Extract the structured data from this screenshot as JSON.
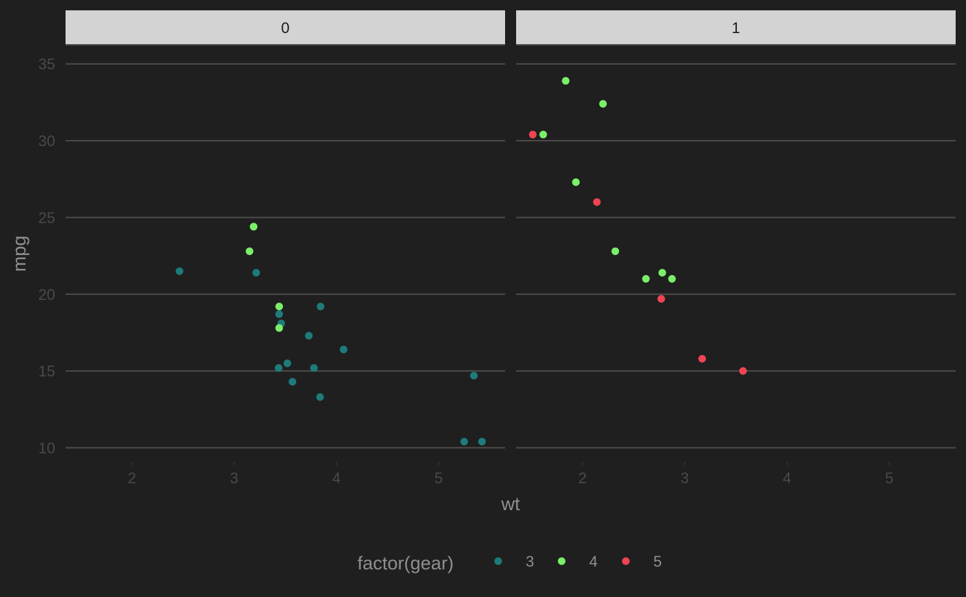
{
  "chart_data": {
    "type": "scatter",
    "facet_variable_values": [
      "0",
      "1"
    ],
    "xlabel": "wt",
    "ylabel": "mpg",
    "xlim": [
      1.35,
      5.65
    ],
    "ylim": [
      9.35,
      36.2
    ],
    "x_ticks": [
      2,
      3,
      4,
      5
    ],
    "y_ticks": [
      10,
      15,
      20,
      25,
      30,
      35
    ],
    "grid": "horizontal major only",
    "legend": {
      "title": "factor(gear)",
      "position": "bottom",
      "entries": [
        {
          "label": "3",
          "color": "#1e7b7b"
        },
        {
          "label": "4",
          "color": "#7bef6a"
        },
        {
          "label": "5",
          "color": "#ef4453"
        }
      ]
    },
    "panels": [
      {
        "strip": "0",
        "points": [
          {
            "x": 2.465,
            "y": 21.5,
            "gear": "3"
          },
          {
            "x": 3.215,
            "y": 21.4,
            "gear": "3"
          },
          {
            "x": 3.44,
            "y": 18.7,
            "gear": "3"
          },
          {
            "x": 3.46,
            "y": 18.1,
            "gear": "3"
          },
          {
            "x": 3.57,
            "y": 14.3,
            "gear": "3"
          },
          {
            "x": 4.07,
            "y": 16.4,
            "gear": "3"
          },
          {
            "x": 3.73,
            "y": 17.3,
            "gear": "3"
          },
          {
            "x": 3.78,
            "y": 15.2,
            "gear": "3"
          },
          {
            "x": 5.25,
            "y": 10.4,
            "gear": "3"
          },
          {
            "x": 5.424,
            "y": 10.4,
            "gear": "3"
          },
          {
            "x": 5.345,
            "y": 14.7,
            "gear": "3"
          },
          {
            "x": 3.52,
            "y": 15.5,
            "gear": "3"
          },
          {
            "x": 3.435,
            "y": 15.2,
            "gear": "3"
          },
          {
            "x": 3.84,
            "y": 13.3,
            "gear": "3"
          },
          {
            "x": 3.845,
            "y": 19.2,
            "gear": "3"
          },
          {
            "x": 3.19,
            "y": 24.4,
            "gear": "4"
          },
          {
            "x": 3.15,
            "y": 22.8,
            "gear": "4"
          },
          {
            "x": 3.44,
            "y": 19.2,
            "gear": "4"
          },
          {
            "x": 3.44,
            "y": 17.8,
            "gear": "4"
          }
        ]
      },
      {
        "strip": "1",
        "points": [
          {
            "x": 2.62,
            "y": 21.0,
            "gear": "4"
          },
          {
            "x": 2.875,
            "y": 21.0,
            "gear": "4"
          },
          {
            "x": 2.32,
            "y": 22.8,
            "gear": "4"
          },
          {
            "x": 2.2,
            "y": 32.4,
            "gear": "4"
          },
          {
            "x": 1.615,
            "y": 30.4,
            "gear": "4"
          },
          {
            "x": 1.835,
            "y": 33.9,
            "gear": "4"
          },
          {
            "x": 1.935,
            "y": 27.3,
            "gear": "4"
          },
          {
            "x": 2.78,
            "y": 21.4,
            "gear": "4"
          },
          {
            "x": 2.14,
            "y": 26.0,
            "gear": "5"
          },
          {
            "x": 1.513,
            "y": 30.4,
            "gear": "5"
          },
          {
            "x": 3.17,
            "y": 15.8,
            "gear": "5"
          },
          {
            "x": 2.77,
            "y": 19.7,
            "gear": "5"
          },
          {
            "x": 3.57,
            "y": 15.0,
            "gear": "5"
          }
        ]
      }
    ]
  },
  "colors": {
    "background": "#1f1f1f",
    "grid": "#4d4d4d",
    "strip_fill": "#d3d3d3",
    "strip_line": "#4d4d4d"
  }
}
